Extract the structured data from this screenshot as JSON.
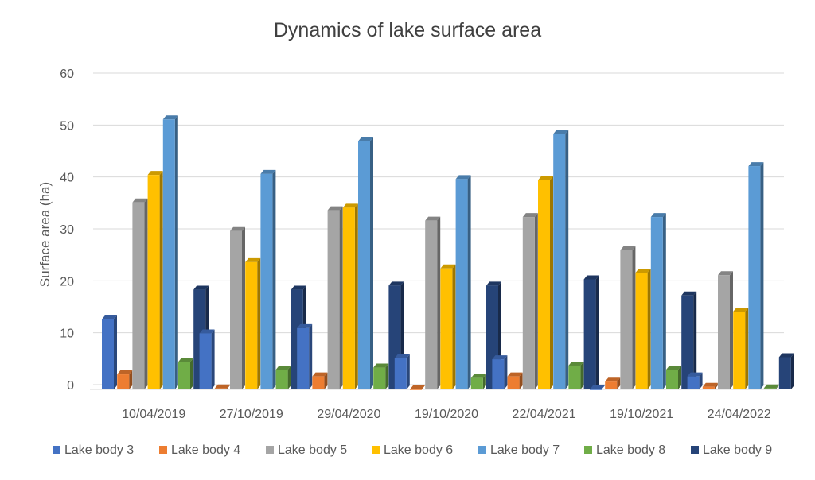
{
  "chart_data": {
    "type": "bar",
    "title": "Dynamics of lake surface area",
    "xlabel": "",
    "ylabel": "Surface area (ha)",
    "ylim": [
      0,
      60
    ],
    "yticks": [
      0,
      10,
      20,
      30,
      40,
      50,
      60
    ],
    "grid": true,
    "legend_position": "bottom",
    "categories": [
      "10/04/2019",
      "27/10/2019",
      "29/04/2020",
      "19/10/2020",
      "22/04/2021",
      "19/10/2021",
      "24/04/2022"
    ],
    "series": [
      {
        "name": "Lake body 3",
        "color": "#4472C4",
        "values": [
          13.5,
          10.8,
          11.8,
          6.0,
          5.8,
          0.0,
          2.5
        ]
      },
      {
        "name": "Lake body 4",
        "color": "#ED7D31",
        "values": [
          2.9,
          0.2,
          2.5,
          0.0,
          2.5,
          1.5,
          0.5
        ]
      },
      {
        "name": "Lake body 5",
        "color": "#A5A5A5",
        "values": [
          36.0,
          30.5,
          34.5,
          32.5,
          33.2,
          26.8,
          22.0
        ]
      },
      {
        "name": "Lake body 6",
        "color": "#FFC000",
        "values": [
          41.3,
          24.5,
          35.0,
          23.3,
          40.3,
          22.5,
          15.0
        ]
      },
      {
        "name": "Lake body 7",
        "color": "#5B9BD5",
        "values": [
          52.0,
          41.5,
          47.8,
          40.5,
          49.2,
          33.2,
          43.0
        ]
      },
      {
        "name": "Lake body 8",
        "color": "#70AD47",
        "values": [
          5.3,
          3.8,
          4.2,
          2.2,
          4.6,
          3.8,
          0.2
        ]
      },
      {
        "name": "Lake body 9",
        "color": "#264478",
        "values": [
          19.2,
          19.2,
          20.0,
          20.0,
          21.2,
          18.1,
          6.2
        ]
      }
    ]
  }
}
